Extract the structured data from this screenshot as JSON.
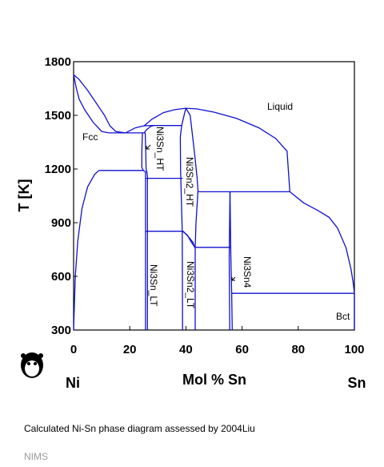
{
  "chart_data": {
    "type": "line",
    "xlabel": "Mol % Sn",
    "ylabel": "T [K]",
    "xlim": [
      0,
      100
    ],
    "ylim": [
      300,
      1800
    ],
    "xticks": [
      "0",
      "20",
      "40",
      "60",
      "80",
      "100"
    ],
    "yticks": [
      "300",
      "600",
      "900",
      "1200",
      "1500",
      "1800"
    ],
    "x_end_labels": {
      "left": "Ni",
      "right": "Sn"
    },
    "phase_labels": [
      "Liquid",
      "Fcc",
      "Ni3Sn_HT",
      "Ni3Sn2_HT",
      "Ni3Sn_LT",
      "Ni3Sn2_LT",
      "Ni3Sn4",
      "Bct"
    ],
    "series": [
      {
        "points": [
          [
            0,
            1728
          ],
          [
            2,
            1700
          ],
          [
            5,
            1640
          ],
          [
            8,
            1570
          ],
          [
            11,
            1500
          ],
          [
            13,
            1440
          ],
          [
            15,
            1410
          ],
          [
            18.5,
            1402
          ]
        ]
      },
      {
        "points": [
          [
            0,
            1728
          ],
          [
            1,
            1650
          ],
          [
            2,
            1590
          ],
          [
            4,
            1530
          ],
          [
            7,
            1460
          ],
          [
            10,
            1410
          ],
          [
            12.5,
            1402
          ]
        ]
      },
      {
        "points": [
          [
            0,
            300
          ],
          [
            0.6,
            600
          ],
          [
            1.5,
            800
          ],
          [
            3,
            980
          ],
          [
            5,
            1100
          ],
          [
            7.5,
            1170
          ],
          [
            9,
            1192
          ]
        ]
      },
      {
        "points": [
          [
            12.5,
            1402
          ],
          [
            25.5,
            1402
          ]
        ]
      },
      {
        "points": [
          [
            9,
            1192
          ],
          [
            25,
            1192
          ]
        ]
      },
      {
        "points": [
          [
            25,
            1400
          ],
          [
            26,
            1420
          ],
          [
            27.5,
            1438
          ],
          [
            28.5,
            1443
          ]
        ]
      },
      {
        "points": [
          [
            18.5,
            1402
          ],
          [
            22,
            1430
          ],
          [
            25,
            1442
          ],
          [
            28.5,
            1443
          ]
        ]
      },
      {
        "points": [
          [
            28.5,
            1443
          ],
          [
            38.5,
            1443
          ]
        ]
      },
      {
        "points": [
          [
            24.5,
            1403
          ],
          [
            24.3,
            1300
          ],
          [
            24.3,
            1210
          ],
          [
            24.8,
            1192
          ],
          [
            25.6,
            1185
          ],
          [
            25.6,
            850
          ],
          [
            25.6,
            300
          ]
        ]
      },
      {
        "points": [
          [
            25.5,
            1402
          ],
          [
            25.7,
            1300
          ],
          [
            25.8,
            1200
          ]
        ]
      },
      {
        "points": [
          [
            25.8,
            1200
          ],
          [
            26,
            1190
          ],
          [
            26.3,
            1160
          ],
          [
            26.3,
            850
          ],
          [
            26.3,
            300
          ]
        ]
      },
      {
        "points": [
          [
            25.8,
            1148
          ],
          [
            38.8,
            1148
          ]
        ]
      },
      {
        "points": [
          [
            25.6,
            852
          ],
          [
            39,
            852
          ],
          [
            41,
            820
          ],
          [
            42.5,
            790
          ],
          [
            43.2,
            760
          ]
        ]
      },
      {
        "points": [
          [
            38.5,
            1443
          ],
          [
            38,
            1380
          ],
          [
            38.1,
            1200
          ],
          [
            38.7,
            852
          ],
          [
            38.8,
            300
          ]
        ]
      },
      {
        "points": [
          [
            38.5,
            1443
          ],
          [
            39.5,
            1510
          ],
          [
            40,
            1540
          ]
        ]
      },
      {
        "points": [
          [
            40,
            1540
          ],
          [
            41.5,
            1500
          ],
          [
            43,
            1300
          ],
          [
            44,
            1150
          ],
          [
            44.3,
            1080
          ],
          [
            43.6,
            900
          ],
          [
            43.3,
            760
          ],
          [
            43.3,
            300
          ]
        ]
      },
      {
        "points": [
          [
            39,
            850
          ],
          [
            40.5,
            830
          ],
          [
            42,
            790
          ],
          [
            43.3,
            760
          ]
        ]
      },
      {
        "points": [
          [
            43,
            762
          ],
          [
            55.8,
            762
          ]
        ]
      },
      {
        "points": [
          [
            44.2,
            1073
          ],
          [
            77,
            1073
          ]
        ]
      },
      {
        "points": [
          [
            55.7,
            1073
          ],
          [
            55.4,
            700
          ],
          [
            55.6,
            300
          ]
        ]
      },
      {
        "points": [
          [
            55.7,
            1073
          ],
          [
            56,
            700
          ],
          [
            56.3,
            505
          ],
          [
            56.5,
            300
          ]
        ]
      },
      {
        "points": [
          [
            56.3,
            505
          ],
          [
            100,
            505
          ]
        ]
      },
      {
        "points": [
          [
            25,
            1440
          ],
          [
            28,
            1480
          ],
          [
            32,
            1515
          ],
          [
            36,
            1532
          ],
          [
            40,
            1540
          ],
          [
            44,
            1536
          ],
          [
            50,
            1518
          ],
          [
            58,
            1483
          ],
          [
            66,
            1430
          ],
          [
            72,
            1370
          ],
          [
            76,
            1300
          ],
          [
            77,
            1073
          ]
        ]
      },
      {
        "points": [
          [
            77,
            1073
          ],
          [
            82,
            1010
          ],
          [
            87,
            968
          ],
          [
            91,
            930
          ],
          [
            94,
            870
          ],
          [
            97,
            760
          ],
          [
            98.8,
            640
          ],
          [
            99.6,
            560
          ],
          [
            100,
            505
          ]
        ]
      },
      {
        "points": [
          [
            100,
            505
          ],
          [
            100,
            300
          ]
        ]
      }
    ]
  },
  "caption": "Calculated Ni-Sn phase diagram assessed by 2004Liu",
  "source": "NIMS",
  "colors": {
    "boundary": "#1010d0",
    "axis": "#000000"
  }
}
